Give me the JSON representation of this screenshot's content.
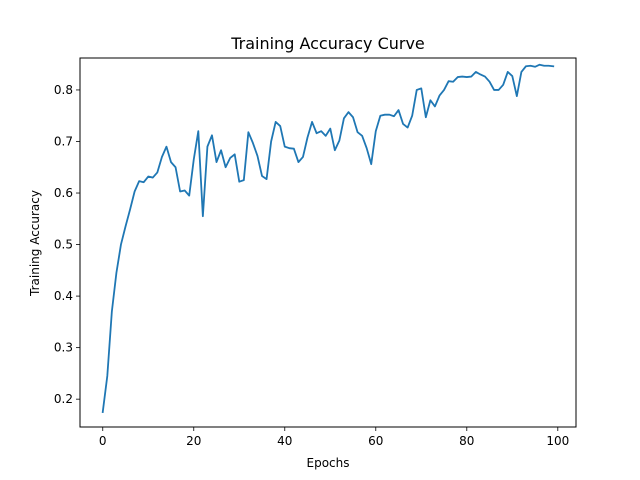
{
  "chart_data": {
    "type": "line",
    "title": "Training Accuracy Curve",
    "xlabel": "Epochs",
    "ylabel": "Training Accuracy",
    "xlim": [
      -5,
      104
    ],
    "ylim": [
      0.146,
      0.862
    ],
    "xticks": [
      0,
      20,
      40,
      60,
      80,
      100
    ],
    "yticks": [
      0.2,
      0.3,
      0.4,
      0.5,
      0.6,
      0.7,
      0.8
    ],
    "grid": false,
    "colors": {
      "line": "#1f77b4"
    },
    "series": [
      {
        "x": [
          0,
          1,
          2,
          3,
          4,
          5,
          6,
          7,
          8,
          9,
          10,
          11,
          12,
          13,
          14,
          15,
          16,
          17,
          18,
          19,
          20,
          21,
          22,
          23,
          24,
          25,
          26,
          27,
          28,
          29,
          30,
          31,
          32,
          33,
          34,
          35,
          36,
          37,
          38,
          39,
          40,
          41,
          42,
          43,
          44,
          45,
          46,
          47,
          48,
          49,
          50,
          51,
          52,
          53,
          54,
          55,
          56,
          57,
          58,
          59,
          60,
          61,
          62,
          63,
          64,
          65,
          66,
          67,
          68,
          69,
          70,
          71,
          72,
          73,
          74,
          75,
          76,
          77,
          78,
          79,
          80,
          81,
          82,
          83,
          84,
          85,
          86,
          87,
          88,
          89,
          90,
          91,
          92,
          93,
          94,
          95,
          96,
          97,
          98,
          99
        ],
        "values": [
          0.175,
          0.245,
          0.37,
          0.445,
          0.5,
          0.535,
          0.568,
          0.603,
          0.623,
          0.621,
          0.632,
          0.63,
          0.64,
          0.67,
          0.69,
          0.66,
          0.65,
          0.603,
          0.605,
          0.595,
          0.665,
          0.72,
          0.555,
          0.69,
          0.712,
          0.66,
          0.683,
          0.65,
          0.668,
          0.675,
          0.622,
          0.625,
          0.718,
          0.697,
          0.672,
          0.633,
          0.627,
          0.7,
          0.738,
          0.73,
          0.69,
          0.687,
          0.686,
          0.66,
          0.67,
          0.708,
          0.738,
          0.716,
          0.72,
          0.711,
          0.725,
          0.683,
          0.702,
          0.745,
          0.757,
          0.747,
          0.718,
          0.711,
          0.687,
          0.656,
          0.72,
          0.75,
          0.752,
          0.752,
          0.749,
          0.761,
          0.734,
          0.727,
          0.75,
          0.8,
          0.803,
          0.747,
          0.78,
          0.768,
          0.789,
          0.8,
          0.817,
          0.816,
          0.825,
          0.826,
          0.825,
          0.826,
          0.835,
          0.83,
          0.826,
          0.816,
          0.8,
          0.8,
          0.81,
          0.835,
          0.827,
          0.788,
          0.835,
          0.846,
          0.847,
          0.845,
          0.849,
          0.847,
          0.847,
          0.846
        ]
      }
    ]
  }
}
